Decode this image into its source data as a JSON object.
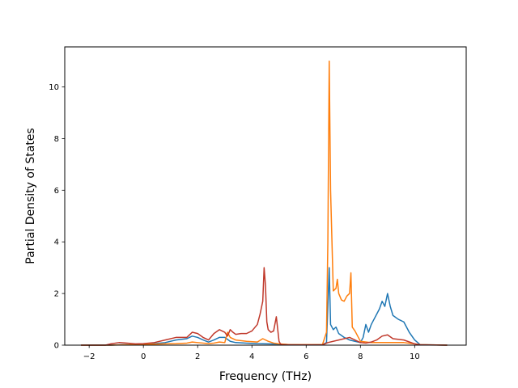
{
  "chart_data": {
    "type": "line",
    "xlabel": "Frequency (THz)",
    "ylabel": "Partial Density of States",
    "xlim": [
      -2.9,
      11.9
    ],
    "ylim": [
      0,
      11.55
    ],
    "xticks": [
      -2,
      0,
      2,
      4,
      6,
      8,
      10
    ],
    "xtick_labels": [
      "−2",
      "0",
      "2",
      "4",
      "6",
      "8",
      "10"
    ],
    "yticks": [
      0,
      2,
      4,
      6,
      8,
      10
    ],
    "ytick_labels": [
      "0",
      "2",
      "4",
      "6",
      "8",
      "10"
    ],
    "grid": false,
    "legend": "none",
    "series": [
      {
        "color": "#1f77b4",
        "x": [
          -2.3,
          -1.2,
          -0.8,
          -0.4,
          0,
          0.4,
          0.8,
          1.2,
          1.6,
          1.8,
          2.0,
          2.2,
          2.4,
          2.6,
          2.8,
          3.0,
          3.2,
          3.4,
          3.8,
          4.2,
          4.6,
          5.0,
          5.4,
          5.8,
          6.2,
          6.6,
          6.75,
          6.8,
          6.85,
          6.9,
          7.0,
          7.1,
          7.2,
          7.4,
          7.6,
          7.8,
          8.0,
          8.1,
          8.2,
          8.3,
          8.4,
          8.5,
          8.7,
          8.8,
          8.9,
          9.0,
          9.1,
          9.2,
          9.4,
          9.6,
          9.8,
          10.0,
          10.2,
          11.2
        ],
        "y": [
          0,
          0,
          0.02,
          0.02,
          0.04,
          0.06,
          0.1,
          0.2,
          0.25,
          0.35,
          0.3,
          0.2,
          0.12,
          0.2,
          0.3,
          0.3,
          0.15,
          0.1,
          0.08,
          0.06,
          0.05,
          0.04,
          0.02,
          0.01,
          0.01,
          0.02,
          0.1,
          1.5,
          3.0,
          0.8,
          0.6,
          0.7,
          0.45,
          0.3,
          0.2,
          0.15,
          0.1,
          0.3,
          0.8,
          0.5,
          0.8,
          1.0,
          1.4,
          1.7,
          1.5,
          2.0,
          1.5,
          1.15,
          1.0,
          0.9,
          0.5,
          0.2,
          0.02,
          0
        ]
      },
      {
        "color": "#ff7f0e",
        "x": [
          -2.3,
          -1.2,
          -0.8,
          -0.4,
          0,
          0.4,
          0.8,
          1.2,
          1.6,
          1.8,
          2.0,
          2.2,
          2.4,
          2.6,
          2.8,
          3.0,
          3.1,
          3.2,
          3.4,
          3.8,
          4.2,
          4.4,
          4.6,
          4.8,
          5.0,
          5.4,
          5.8,
          6.2,
          6.6,
          6.75,
          6.8,
          6.85,
          6.9,
          7.0,
          7.1,
          7.15,
          7.2,
          7.3,
          7.4,
          7.5,
          7.6,
          7.65,
          7.7,
          7.8,
          8.0,
          8.4,
          8.8,
          9.2,
          9.6,
          10.0,
          10.2,
          11.2
        ],
        "y": [
          0,
          0,
          0.01,
          0.02,
          0.03,
          0.04,
          0.05,
          0.06,
          0.08,
          0.12,
          0.1,
          0.08,
          0.06,
          0.08,
          0.12,
          0.1,
          0.5,
          0.3,
          0.2,
          0.15,
          0.12,
          0.25,
          0.15,
          0.08,
          0.05,
          0.02,
          0.02,
          0.02,
          0.02,
          0.5,
          4.0,
          11.0,
          6.0,
          2.1,
          2.2,
          2.55,
          2.0,
          1.75,
          1.7,
          1.9,
          2.0,
          2.8,
          0.7,
          0.55,
          0.15,
          0.1,
          0.1,
          0.1,
          0.1,
          0.05,
          0.02,
          0
        ]
      },
      {
        "color": "#c0392b",
        "x": [
          -2.3,
          -1.4,
          -1.2,
          -0.9,
          -0.6,
          -0.3,
          0,
          0.4,
          0.8,
          1.2,
          1.6,
          1.8,
          2.0,
          2.2,
          2.4,
          2.6,
          2.8,
          3.0,
          3.1,
          3.2,
          3.3,
          3.4,
          3.6,
          3.8,
          4.0,
          4.2,
          4.3,
          4.4,
          4.45,
          4.5,
          4.55,
          4.6,
          4.7,
          4.8,
          4.9,
          5.0,
          5.05,
          5.1,
          5.4,
          5.8,
          6.2,
          6.6,
          6.8,
          7.2,
          7.6,
          8.0,
          8.2,
          8.4,
          8.6,
          8.8,
          9.0,
          9.2,
          9.6,
          10.0,
          10.2,
          11.2
        ],
        "y": [
          0,
          0,
          0.05,
          0.1,
          0.08,
          0.05,
          0.06,
          0.1,
          0.2,
          0.3,
          0.3,
          0.5,
          0.45,
          0.3,
          0.2,
          0.45,
          0.6,
          0.5,
          0.35,
          0.6,
          0.5,
          0.42,
          0.45,
          0.45,
          0.55,
          0.8,
          1.2,
          1.7,
          3.0,
          2.3,
          0.9,
          0.6,
          0.5,
          0.55,
          1.1,
          0.15,
          0.05,
          0.02,
          0.01,
          0.01,
          0.01,
          0.01,
          0.1,
          0.2,
          0.3,
          0.1,
          0.08,
          0.12,
          0.2,
          0.35,
          0.4,
          0.25,
          0.2,
          0.05,
          0.01,
          0
        ]
      }
    ]
  }
}
